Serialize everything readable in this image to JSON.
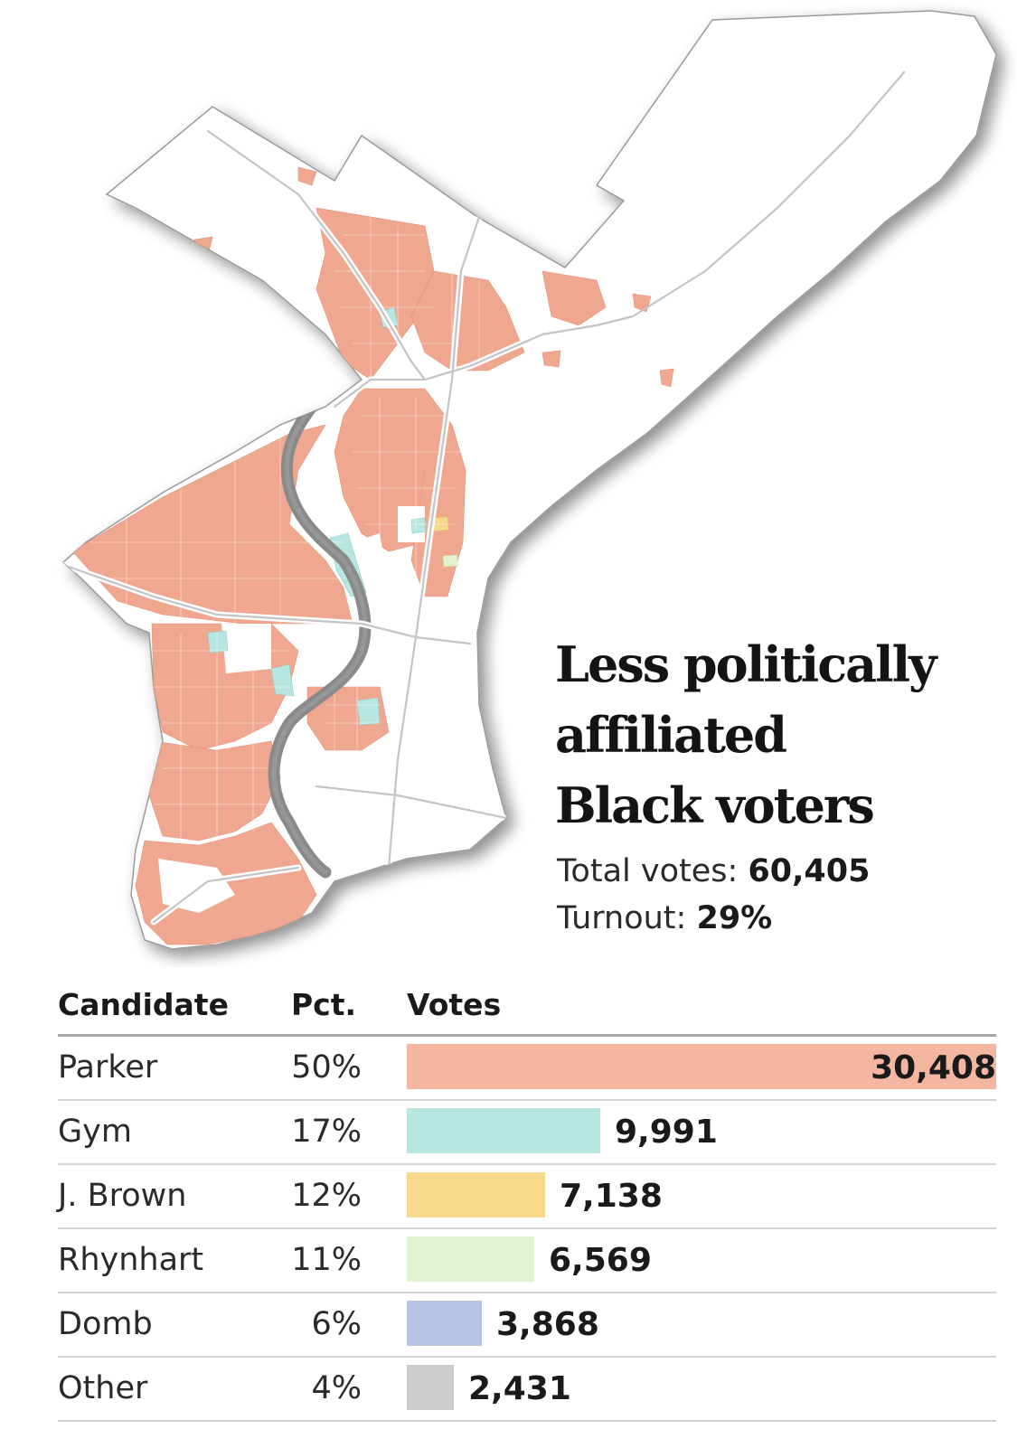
{
  "title": "Less politically affiliated Black voters",
  "title_lines": [
    "Less politically",
    "affiliated",
    "Black voters"
  ],
  "stats": {
    "total_label": "Total votes:",
    "total_value": "60,405",
    "turnout_label": "Turnout:",
    "turnout_value": "29%"
  },
  "table": {
    "headers": {
      "candidate": "Candidate",
      "pct": "Pct.",
      "votes": "Votes"
    },
    "rows": [
      {
        "name": "Parker",
        "pct": "50%",
        "votes_label": "30,408",
        "votes": 30408,
        "color": "#f4b5a1"
      },
      {
        "name": "Gym",
        "pct": "17%",
        "votes_label": "9,991",
        "votes": 9991,
        "color": "#b7e6e0"
      },
      {
        "name": "J. Brown",
        "pct": "12%",
        "votes_label": "7,138",
        "votes": 7138,
        "color": "#f6d98a"
      },
      {
        "name": "Rhynhart",
        "pct": "11%",
        "votes_label": "6,569",
        "votes": 6569,
        "color": "#e2f1cf"
      },
      {
        "name": "Domb",
        "pct": "6%",
        "votes_label": "3,868",
        "votes": 3868,
        "color": "#b7c4e6"
      },
      {
        "name": "Other",
        "pct": "4%",
        "votes_label": "2,431",
        "votes": 2431,
        "color": "#cccccc"
      }
    ]
  },
  "map": {
    "highlight_color": "#f0a790",
    "teal_color": "#b7e6e0",
    "river_color": "#8a8a8a",
    "land_color": "#ffffff"
  }
}
